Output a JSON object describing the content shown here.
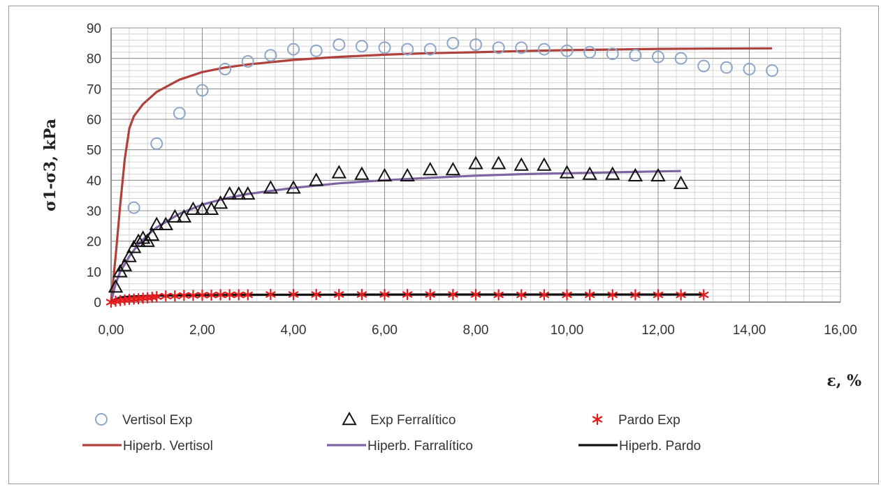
{
  "chart_data": {
    "type": "scatter",
    "ylabel": "σ1-σ3,  kPa",
    "xlabel": "ε, %",
    "xlim": [
      0,
      16
    ],
    "ylim": [
      0,
      90
    ],
    "x_ticks": [
      "0,00",
      "2,00",
      "4,00",
      "6,00",
      "8,00",
      "10,00",
      "12,00",
      "14,00",
      "16,00"
    ],
    "y_ticks": [
      "0",
      "10",
      "20",
      "30",
      "40",
      "50",
      "60",
      "70",
      "80",
      "90"
    ],
    "grid": true,
    "legend_position": "bottom",
    "series": [
      {
        "name": "Vertisol Exp",
        "kind": "marker",
        "marker": "circle",
        "color": "#8ea6c8",
        "points": [
          [
            0.5,
            31
          ],
          [
            1.0,
            52
          ],
          [
            1.5,
            62
          ],
          [
            2.0,
            69.5
          ],
          [
            2.5,
            76.5
          ],
          [
            3.0,
            79
          ],
          [
            3.5,
            81
          ],
          [
            4.0,
            83
          ],
          [
            4.5,
            82.5
          ],
          [
            5.0,
            84.5
          ],
          [
            5.5,
            84
          ],
          [
            6.0,
            83.5
          ],
          [
            6.5,
            83
          ],
          [
            7.0,
            83
          ],
          [
            7.5,
            85
          ],
          [
            8.0,
            84.5
          ],
          [
            8.5,
            83.5
          ],
          [
            9.0,
            83.5
          ],
          [
            9.5,
            83
          ],
          [
            10.0,
            82.5
          ],
          [
            10.5,
            82
          ],
          [
            11.0,
            81.5
          ],
          [
            11.5,
            81
          ],
          [
            12.0,
            80.5
          ],
          [
            12.5,
            80
          ],
          [
            13.0,
            77.5
          ],
          [
            13.5,
            77
          ],
          [
            14.0,
            76.5
          ],
          [
            14.5,
            76
          ]
        ]
      },
      {
        "name": "Exp Ferralítico",
        "kind": "marker",
        "marker": "triangle",
        "color": "#111111",
        "points": [
          [
            0.1,
            5
          ],
          [
            0.2,
            10
          ],
          [
            0.3,
            12
          ],
          [
            0.4,
            15
          ],
          [
            0.5,
            18
          ],
          [
            0.6,
            20
          ],
          [
            0.7,
            21
          ],
          [
            0.8,
            20
          ],
          [
            0.9,
            22
          ],
          [
            1.0,
            25.5
          ],
          [
            1.2,
            25.5
          ],
          [
            1.4,
            28
          ],
          [
            1.6,
            28
          ],
          [
            1.8,
            30.5
          ],
          [
            2.0,
            30.5
          ],
          [
            2.2,
            30.5
          ],
          [
            2.4,
            32.5
          ],
          [
            2.6,
            35.5
          ],
          [
            2.8,
            35.5
          ],
          [
            3.0,
            35.5
          ],
          [
            3.5,
            37.5
          ],
          [
            4.0,
            37.5
          ],
          [
            4.5,
            40
          ],
          [
            5.0,
            42.5
          ],
          [
            5.5,
            42
          ],
          [
            6.0,
            41.5
          ],
          [
            6.5,
            41.5
          ],
          [
            7.0,
            43.5
          ],
          [
            7.5,
            43.5
          ],
          [
            8.0,
            45.5
          ],
          [
            8.5,
            45.5
          ],
          [
            9.0,
            45
          ],
          [
            9.5,
            45
          ],
          [
            10.0,
            42.5
          ],
          [
            10.5,
            42
          ],
          [
            11.0,
            42
          ],
          [
            11.5,
            41.5
          ],
          [
            12.0,
            41.5
          ],
          [
            12.5,
            39
          ]
        ]
      },
      {
        "name": "Pardo Exp",
        "kind": "marker",
        "marker": "asterisk",
        "color": "#e41a1c",
        "points": [
          [
            0.0,
            0
          ],
          [
            0.1,
            0.3
          ],
          [
            0.2,
            0.5
          ],
          [
            0.3,
            0.7
          ],
          [
            0.4,
            0.9
          ],
          [
            0.5,
            1.0
          ],
          [
            0.6,
            1.1
          ],
          [
            0.7,
            1.3
          ],
          [
            0.8,
            1.4
          ],
          [
            0.9,
            1.6
          ],
          [
            1.0,
            1.8
          ],
          [
            1.2,
            2.0
          ],
          [
            1.4,
            2.0
          ],
          [
            1.6,
            2.2
          ],
          [
            1.8,
            2.2
          ],
          [
            2.0,
            2.3
          ],
          [
            2.2,
            2.3
          ],
          [
            2.4,
            2.4
          ],
          [
            2.6,
            2.4
          ],
          [
            2.8,
            2.4
          ],
          [
            3.0,
            2.4
          ],
          [
            3.5,
            2.5
          ],
          [
            4.0,
            2.5
          ],
          [
            4.5,
            2.5
          ],
          [
            5.0,
            2.5
          ],
          [
            5.5,
            2.5
          ],
          [
            6.0,
            2.5
          ],
          [
            6.5,
            2.5
          ],
          [
            7.0,
            2.5
          ],
          [
            7.5,
            2.5
          ],
          [
            8.0,
            2.5
          ],
          [
            8.5,
            2.4
          ],
          [
            9.0,
            2.4
          ],
          [
            9.5,
            2.4
          ],
          [
            10.0,
            2.4
          ],
          [
            10.5,
            2.4
          ],
          [
            11.0,
            2.4
          ],
          [
            11.5,
            2.4
          ],
          [
            12.0,
            2.4
          ],
          [
            12.5,
            2.4
          ],
          [
            13.0,
            2.4
          ]
        ]
      },
      {
        "name": "Hiperb. Vertisol",
        "kind": "line",
        "color": "#b0403a",
        "points": [
          [
            0.0,
            0
          ],
          [
            0.1,
            15
          ],
          [
            0.2,
            32
          ],
          [
            0.3,
            47
          ],
          [
            0.4,
            57
          ],
          [
            0.5,
            61
          ],
          [
            0.7,
            65
          ],
          [
            1.0,
            69
          ],
          [
            1.5,
            73
          ],
          [
            2.0,
            75.5
          ],
          [
            2.5,
            77
          ],
          [
            3.0,
            78
          ],
          [
            4.0,
            79.5
          ],
          [
            5.0,
            80.5
          ],
          [
            6.0,
            81.2
          ],
          [
            7.0,
            81.7
          ],
          [
            8.0,
            82
          ],
          [
            9.0,
            82.4
          ],
          [
            10.0,
            82.7
          ],
          [
            11.0,
            82.9
          ],
          [
            12.0,
            83.1
          ],
          [
            13.0,
            83.2
          ],
          [
            14.5,
            83.3
          ]
        ]
      },
      {
        "name": "Hiperb. Farralítico",
        "kind": "line",
        "color": "#8064a2",
        "points": [
          [
            0.0,
            0
          ],
          [
            0.1,
            6
          ],
          [
            0.2,
            10
          ],
          [
            0.4,
            15
          ],
          [
            0.6,
            19
          ],
          [
            0.8,
            22
          ],
          [
            1.0,
            24.5
          ],
          [
            1.5,
            29
          ],
          [
            2.0,
            32
          ],
          [
            2.5,
            34
          ],
          [
            3.0,
            35.5
          ],
          [
            4.0,
            37.5
          ],
          [
            5.0,
            39
          ],
          [
            6.0,
            40
          ],
          [
            7.0,
            40.8
          ],
          [
            8.0,
            41.5
          ],
          [
            9.0,
            42
          ],
          [
            10.0,
            42.3
          ],
          [
            11.0,
            42.6
          ],
          [
            12.0,
            42.9
          ],
          [
            12.5,
            43
          ]
        ]
      },
      {
        "name": "Hiperb. Pardo",
        "kind": "line",
        "color": "#111111",
        "points": [
          [
            0.0,
            0
          ],
          [
            0.1,
            1.0
          ],
          [
            0.2,
            1.5
          ],
          [
            0.4,
            1.8
          ],
          [
            0.7,
            2.0
          ],
          [
            1.0,
            2.1
          ],
          [
            1.5,
            2.2
          ],
          [
            2.0,
            2.3
          ],
          [
            3.0,
            2.4
          ],
          [
            5.0,
            2.45
          ],
          [
            8.0,
            2.5
          ],
          [
            10.0,
            2.5
          ],
          [
            13.0,
            2.5
          ]
        ]
      }
    ]
  }
}
